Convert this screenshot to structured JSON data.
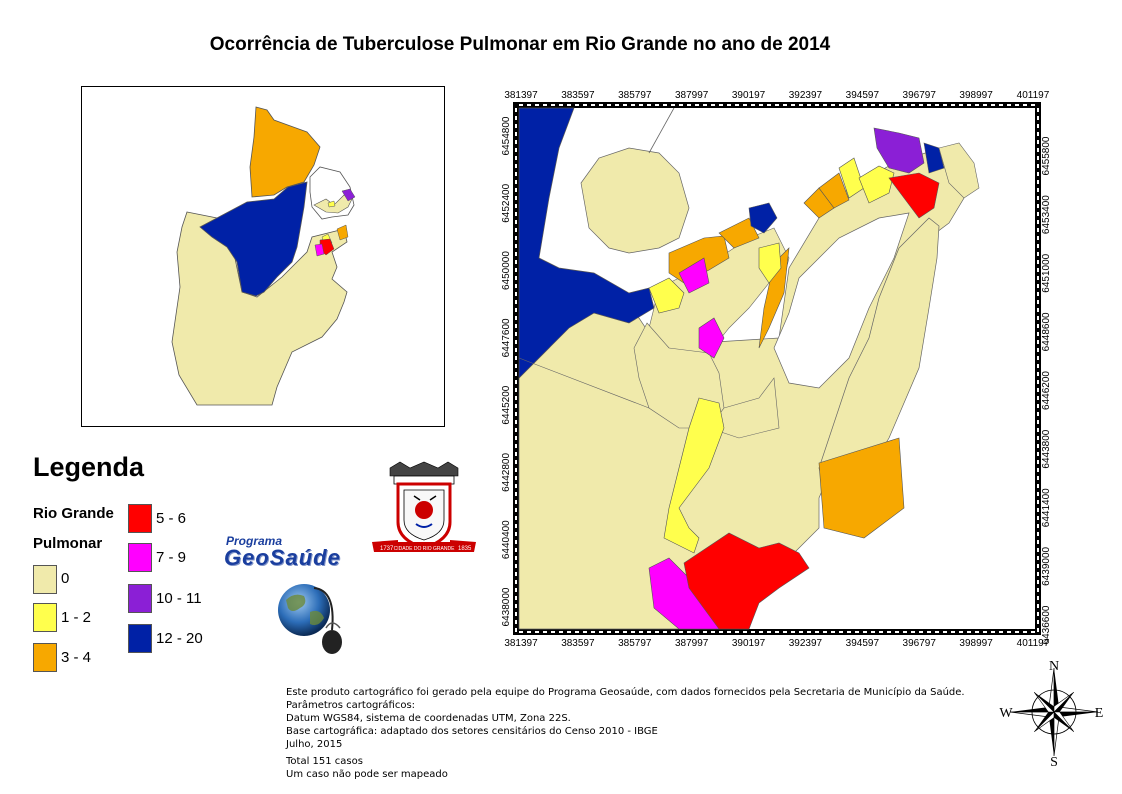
{
  "title": "Ocorrência de Tuberculose Pulmonar em Rio Grande no ano de 2014",
  "map": {
    "x_ticks": [
      "381397",
      "383597",
      "385797",
      "387997",
      "390197",
      "392397",
      "394597",
      "396797",
      "398997",
      "401197"
    ],
    "y_ticks": [
      "6436600",
      "6439000",
      "6441400",
      "6443800",
      "6446200",
      "6448600",
      "6451000",
      "6453400",
      "6455800"
    ],
    "y_ticks_left": [
      "6438000",
      "6440400",
      "6442800",
      "6445200",
      "6447600",
      "6450000",
      "6452400",
      "6454800"
    ]
  },
  "legend": {
    "title": "Legenda",
    "layer_line1": "Rio Grande",
    "layer_line2": "Pulmonar",
    "classes": [
      {
        "label": "0",
        "color": "#f0eaab"
      },
      {
        "label": "1 - 2",
        "color": "#ffff4d"
      },
      {
        "label": "3 - 4",
        "color": "#f7a800"
      },
      {
        "label": "5 - 6",
        "color": "#ff0000"
      },
      {
        "label": "7 - 9",
        "color": "#ff00ff"
      },
      {
        "label": "10 - 11",
        "color": "#8b1fd6"
      },
      {
        "label": "12 - 20",
        "color": "#0021a6"
      }
    ]
  },
  "logos": {
    "geosaude_top": "Programa",
    "geosaude_main": "GeoSaúde",
    "crest_text": "CIDADE DO RIO GRANDE",
    "crest_year_left": "1737",
    "crest_year_right": "1835"
  },
  "footer": {
    "line1": "Este produto cartográfico foi gerado pela equipe do Programa Geosaúde, com dados fornecidos pela Secretaria de Município da Saúde.",
    "line2": "Parâmetros cartográficos:",
    "line3": "Datum WGS84, sistema de coordenadas UTM, Zona 22S.",
    "line4": "Base cartográfica: adaptado dos setores censitários do Censo 2010 - IBGE",
    "line5": "Julho, 2015",
    "line6": "Total 151 casos",
    "line7": "Um caso não pode ser mapeado"
  },
  "compass": {
    "n": "N",
    "s": "S",
    "e": "E",
    "w": "W"
  }
}
